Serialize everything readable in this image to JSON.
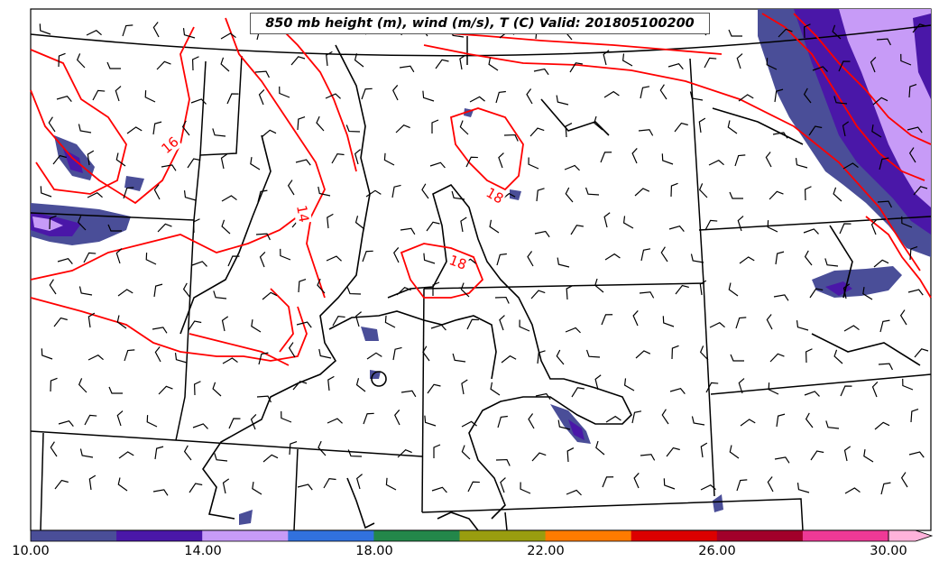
{
  "title": "850 mb height (m), wind (m/s), T (C) Valid: 201805100200",
  "colorbar": {
    "colors": [
      "#4a4e98",
      "#4a17a8",
      "#c79bf7",
      "#3171de",
      "#23874a",
      "#999d0f",
      "#ff7b00",
      "#dc0000",
      "#a1002a",
      "#ee3996",
      "#ffb3db"
    ],
    "tick_labels": [
      "10.00",
      "14.00",
      "18.00",
      "22.00",
      "26.00",
      "30.00"
    ]
  },
  "contour_labels": [
    "16",
    "14",
    "18",
    "18"
  ],
  "style": {
    "temp_contour_color": "#ff0000",
    "height_contour_color": "#000000",
    "border_color": "#000000"
  }
}
